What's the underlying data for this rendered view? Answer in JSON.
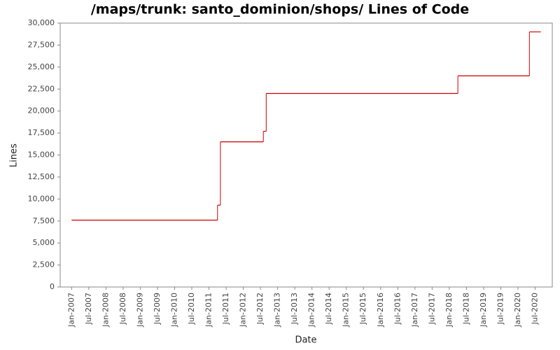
{
  "chart_data": {
    "type": "line",
    "step": "post",
    "title": "/maps/trunk: santo_dominion/shops/ Lines of Code",
    "x_label": "Date",
    "y_label": "Lines",
    "x": [
      "2007-01",
      "2011-04",
      "2011-05",
      "2012-08",
      "2012-09",
      "2018-04",
      "2020-05",
      "2020-09"
    ],
    "series": [
      {
        "name": "Lines",
        "color": "#cc0000",
        "values": [
          7600,
          9300,
          16500,
          17700,
          22000,
          24000,
          29000,
          29000
        ]
      }
    ],
    "xlim": [
      "2006-09",
      "2021-01"
    ],
    "xticks": [
      {
        "value": "2007-01",
        "label": "Jan-2007"
      },
      {
        "value": "2007-07",
        "label": "Jul-2007"
      },
      {
        "value": "2008-01",
        "label": "Jan-2008"
      },
      {
        "value": "2008-07",
        "label": "Jul-2008"
      },
      {
        "value": "2009-01",
        "label": "Jan-2009"
      },
      {
        "value": "2009-07",
        "label": "Jul-2009"
      },
      {
        "value": "2010-01",
        "label": "Jan-2010"
      },
      {
        "value": "2010-07",
        "label": "Jul-2010"
      },
      {
        "value": "2011-01",
        "label": "Jan-2011"
      },
      {
        "value": "2011-07",
        "label": "Jul-2011"
      },
      {
        "value": "2012-01",
        "label": "Jan-2012"
      },
      {
        "value": "2012-07",
        "label": "Jul-2012"
      },
      {
        "value": "2013-01",
        "label": "Jan-2013"
      },
      {
        "value": "2013-07",
        "label": "Jul-2013"
      },
      {
        "value": "2014-01",
        "label": "Jan-2014"
      },
      {
        "value": "2014-07",
        "label": "Jul-2014"
      },
      {
        "value": "2015-01",
        "label": "Jan-2015"
      },
      {
        "value": "2015-07",
        "label": "Jul-2015"
      },
      {
        "value": "2016-01",
        "label": "Jan-2016"
      },
      {
        "value": "2016-07",
        "label": "Jul-2016"
      },
      {
        "value": "2017-01",
        "label": "Jan-2017"
      },
      {
        "value": "2017-07",
        "label": "Jul-2017"
      },
      {
        "value": "2018-01",
        "label": "Jan-2018"
      },
      {
        "value": "2018-07",
        "label": "Jul-2018"
      },
      {
        "value": "2019-01",
        "label": "Jan-2019"
      },
      {
        "value": "2019-07",
        "label": "Jul-2019"
      },
      {
        "value": "2020-01",
        "label": "Jan-2020"
      },
      {
        "value": "2020-07",
        "label": "Jul-2020"
      }
    ],
    "ylim": [
      0,
      30000
    ],
    "yticks": [
      0,
      {
        "value": 2500,
        "label": "2,500"
      },
      {
        "value": 5000,
        "label": "5,000"
      },
      {
        "value": 7500,
        "label": "7,500"
      },
      {
        "value": 10000,
        "label": "10,000"
      },
      {
        "value": 12500,
        "label": "12,500"
      },
      {
        "value": 15000,
        "label": "15,000"
      },
      {
        "value": 17500,
        "label": "17,500"
      },
      {
        "value": 20000,
        "label": "20,000"
      },
      {
        "value": 22500,
        "label": "22,500"
      },
      {
        "value": 25000,
        "label": "25,000"
      },
      {
        "value": 27500,
        "label": "27,500"
      },
      {
        "value": 30000,
        "label": "30,000"
      }
    ],
    "grid": false
  }
}
